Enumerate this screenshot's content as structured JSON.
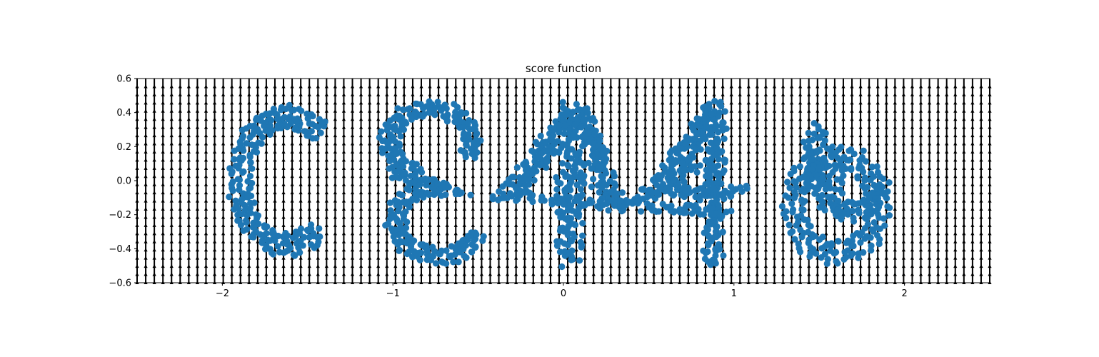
{
  "chart_data": {
    "type": "scatter",
    "title": "score function",
    "xlabel": "",
    "ylabel": "",
    "xlim": [
      -2.5,
      2.5
    ],
    "ylim": [
      -0.6,
      0.6
    ],
    "xticks": [
      -2,
      -1,
      0,
      1,
      2
    ],
    "xtick_labels": [
      "−2",
      "−1",
      "0",
      "1",
      "2"
    ],
    "yticks": [
      -0.6,
      -0.4,
      -0.2,
      0.0,
      0.2,
      0.4,
      0.6
    ],
    "ytick_labels": [
      "−0.6",
      "−0.4",
      "−0.2",
      "0.0",
      "0.2",
      "0.4",
      "0.6"
    ],
    "grid": false,
    "quiver_field": {
      "x_range": [
        -2.5,
        2.5
      ],
      "y_range": [
        -0.6,
        0.6
      ],
      "nx": 100,
      "ny": 25,
      "direction": "up",
      "color": "#000000"
    },
    "scatter_color": "#1f77b4",
    "letters": [
      {
        "glyph": "C",
        "center": [
          -1.62,
          0.0
        ],
        "rx": 0.33,
        "ry": 0.42,
        "gap_deg": [
          -50,
          48
        ]
      },
      {
        "glyph": "S",
        "center": [
          -0.78,
          0.0
        ],
        "rx": 0.3,
        "ry": 0.46
      },
      {
        "glyph": "A",
        "center": [
          0.05,
          -0.02
        ],
        "left_x": -0.36,
        "right_x": 0.36,
        "top_y": 0.44,
        "bottom_y": -0.48
      },
      {
        "glyph": "4",
        "center": [
          0.8,
          0.0
        ],
        "left_x": 0.52,
        "right_x": 1.08,
        "top_y": 0.45,
        "bottom_y": -0.48
      },
      {
        "glyph": "6",
        "center": [
          1.6,
          0.0
        ],
        "rx": 0.32,
        "ry": 0.46
      }
    ]
  }
}
